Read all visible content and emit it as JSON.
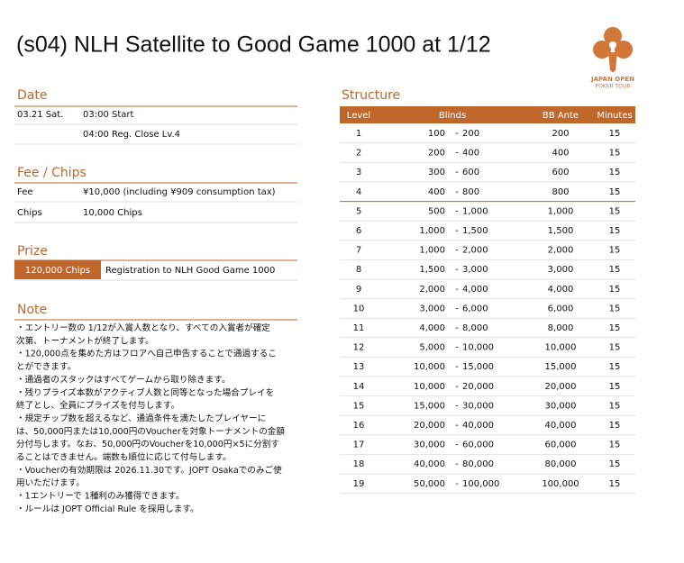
{
  "title": "(s04) NLH Satellite to Good Game 1000 at 1/12",
  "logo": {
    "line1": "JAPAN OPEN",
    "line2": "POKER TOUR"
  },
  "date": {
    "heading": "Date",
    "day": "03.21 Sat.",
    "start": "03:00 Start",
    "close": "04:00 Reg. Close Lv.4"
  },
  "fee": {
    "heading": "Fee / Chips",
    "rows": [
      [
        "Fee",
        "¥10,000 (including ¥909 consumption tax)"
      ],
      [
        "Chips",
        "10,000 Chips"
      ]
    ]
  },
  "prize": {
    "heading": "Prize",
    "rows": [
      [
        "120,000 Chips",
        "Registration to NLH Good Game 1000"
      ]
    ]
  },
  "note": {
    "heading": "Note",
    "lines": [
      "・エントリー数の 1/12が入賞人数となり、すべての入賞者が確定",
      "次第、トーナメントが終了します。",
      "・120,000点を集めた方はフロアへ自己申告することで通過するこ",
      "とができます。",
      "・通過者のスタックはすべてゲームから取り除きます。",
      "・残りプライズ本数がアクティブ人数と同等となった場合プレイを",
      "終了とし、全員にプライズを付与します。",
      "・規定チップ数を超えるなど、通過条件を満たしたプレイヤーに",
      "は、50,000円または10,000円のVoucherを対象トーナメントの金額",
      "分付与します。なお、50,000円のVoucherを10,000円×5に分割す",
      "ることはできません。端数も順位に応じて付与します。",
      "・Voucherの有効期限は 2026.11.30です。JOPT Osakaでのみご使",
      "用いただけます。",
      "・1エントリーで 1種利のみ獲得できます。",
      "・ルールは JOPT Official Rule を採用します。"
    ]
  },
  "structure": {
    "heading": "Structure",
    "columns": [
      "Level",
      "Blinds",
      "BB Ante",
      "Minutes"
    ],
    "rows": [
      {
        "level": 1,
        "small": "100",
        "big": "200",
        "ante": "200",
        "minutes": 15
      },
      {
        "level": 2,
        "small": "200",
        "big": "400",
        "ante": "400",
        "minutes": 15
      },
      {
        "level": 3,
        "small": "300",
        "big": "600",
        "ante": "600",
        "minutes": 15
      },
      {
        "level": 4,
        "small": "400",
        "big": "800",
        "ante": "800",
        "minutes": 15
      },
      {
        "level": 5,
        "small": "500",
        "big": "1,000",
        "ante": "1,000",
        "minutes": 15
      },
      {
        "level": 6,
        "small": "1,000",
        "big": "1,500",
        "ante": "1,500",
        "minutes": 15
      },
      {
        "level": 7,
        "small": "1,000",
        "big": "2,000",
        "ante": "2,000",
        "minutes": 15
      },
      {
        "level": 8,
        "small": "1,500",
        "big": "3,000",
        "ante": "3,000",
        "minutes": 15
      },
      {
        "level": 9,
        "small": "2,000",
        "big": "4,000",
        "ante": "4,000",
        "minutes": 15
      },
      {
        "level": 10,
        "small": "3,000",
        "big": "6,000",
        "ante": "6,000",
        "minutes": 15
      },
      {
        "level": 11,
        "small": "4,000",
        "big": "8,000",
        "ante": "8,000",
        "minutes": 15
      },
      {
        "level": 12,
        "small": "5,000",
        "big": "10,000",
        "ante": "10,000",
        "minutes": 15
      },
      {
        "level": 13,
        "small": "10,000",
        "big": "15,000",
        "ante": "15,000",
        "minutes": 15
      },
      {
        "level": 14,
        "small": "10,000",
        "big": "20,000",
        "ante": "20,000",
        "minutes": 15
      },
      {
        "level": 15,
        "small": "15,000",
        "big": "30,000",
        "ante": "30,000",
        "minutes": 15
      },
      {
        "level": 16,
        "small": "20,000",
        "big": "40,000",
        "ante": "40,000",
        "minutes": 15
      },
      {
        "level": 17,
        "small": "30,000",
        "big": "60,000",
        "ante": "60,000",
        "minutes": 15
      },
      {
        "level": 18,
        "small": "40,000",
        "big": "80,000",
        "ante": "80,000",
        "minutes": 15
      },
      {
        "level": 19,
        "small": "50,000",
        "big": "100,000",
        "ante": "100,000",
        "minutes": 15
      }
    ]
  }
}
